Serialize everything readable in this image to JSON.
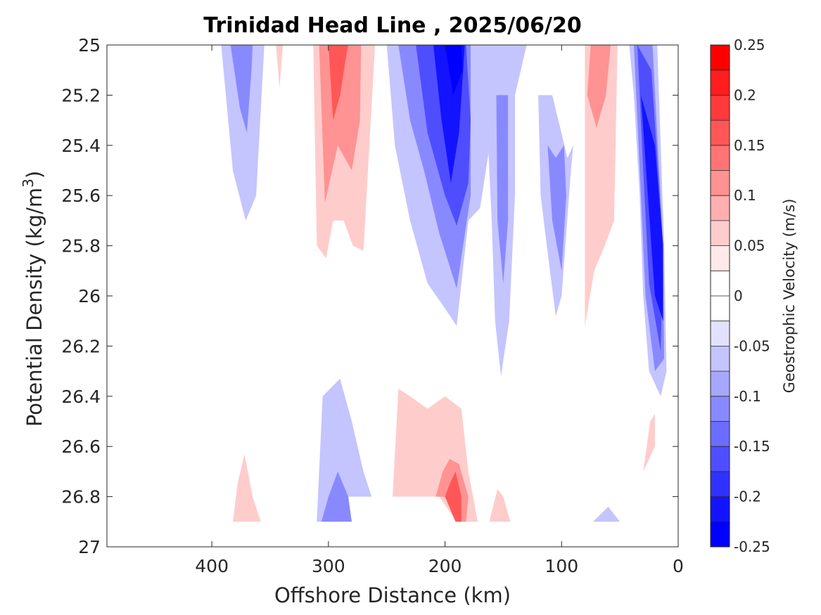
{
  "chart_data": {
    "type": "contour",
    "title": "Trinidad Head Line , 2025/06/20",
    "xlabel": "Offshore Distance (km)",
    "ylabel_main": "Potential Density (kg/m",
    "ylabel_sup": "3",
    "ylabel_close": ")",
    "xlim": [
      490,
      0
    ],
    "ylim": [
      27,
      25
    ],
    "x_ticks": [
      400,
      300,
      200,
      100,
      0
    ],
    "x_tick_labels": [
      "400",
      "300",
      "200",
      "100",
      "0"
    ],
    "y_ticks": [
      25,
      25.2,
      25.4,
      25.6,
      25.8,
      26,
      26.2,
      26.4,
      26.6,
      26.8,
      27
    ],
    "y_tick_labels": [
      "25",
      "25.2",
      "25.4",
      "25.6",
      "25.8",
      "26",
      "26.2",
      "26.4",
      "26.6",
      "26.8",
      "27"
    ],
    "colorbar": {
      "label": "Geostrophic Velocity (m/s)",
      "range": [
        -0.25,
        0.25
      ],
      "tick_values": [
        0.25,
        0.2,
        0.15,
        0.1,
        0.05,
        0,
        -0.05,
        -0.1,
        -0.15,
        -0.2,
        -0.25
      ],
      "tick_labels": [
        "0.25",
        "0.2",
        "0.15",
        "0.1",
        "0.05",
        "0",
        "-0.05",
        "-0.1",
        "-0.15",
        "-0.2",
        "-0.25"
      ],
      "colors_top_to_bottom": [
        "#ff0000",
        "#ff1d1d",
        "#ff3a3a",
        "#ff5757",
        "#ff7474",
        "#ff9292",
        "#ffafaf",
        "#ffcccc",
        "#ffe9e9",
        "#ffffff",
        "#ffffff",
        "#e2e2ff",
        "#c4c4ff",
        "#a7a7ff",
        "#8989ff",
        "#6c6cff",
        "#4e4eff",
        "#3131ff",
        "#1313ff",
        "#0000ff"
      ]
    },
    "regions": [
      {
        "name": "neg-core-A",
        "level": -0.05,
        "pts": [
          [
            392,
            25
          ],
          [
            382,
            25.5
          ],
          [
            371,
            25.7
          ],
          [
            362,
            25.6
          ],
          [
            355,
            25
          ],
          [
            362,
            25
          ],
          [
            370,
            25
          ]
        ]
      },
      {
        "name": "neg-core-A2",
        "level": -0.1,
        "pts": [
          [
            384,
            25
          ],
          [
            376,
            25.25
          ],
          [
            370,
            25.35
          ],
          [
            366,
            25.1
          ],
          [
            365,
            25
          ]
        ]
      },
      {
        "name": "pos-sliver",
        "level": 0.05,
        "pts": [
          [
            345,
            25
          ],
          [
            342,
            25.17
          ],
          [
            339,
            25
          ]
        ]
      },
      {
        "name": "pos-core-B",
        "level": 0.05,
        "pts": [
          [
            313,
            25
          ],
          [
            310,
            25.8
          ],
          [
            302,
            25.85
          ],
          [
            296,
            25.7
          ],
          [
            287,
            25.7
          ],
          [
            279,
            25.8
          ],
          [
            270,
            25.82
          ],
          [
            260,
            25
          ],
          [
            285,
            25
          ]
        ]
      },
      {
        "name": "pos-core-B2",
        "level": 0.1,
        "pts": [
          [
            308,
            25
          ],
          [
            303,
            25.63
          ],
          [
            292,
            25.4
          ],
          [
            280,
            25.5
          ],
          [
            273,
            25.3
          ],
          [
            272,
            25
          ]
        ]
      },
      {
        "name": "pos-core-B3",
        "level": 0.15,
        "pts": [
          [
            300,
            25
          ],
          [
            296,
            25.3
          ],
          [
            290,
            25.2
          ],
          [
            285,
            25.05
          ],
          [
            283,
            25
          ]
        ]
      },
      {
        "name": "neg-core-C",
        "level": -0.05,
        "pts": [
          [
            250,
            25
          ],
          [
            243,
            25.4
          ],
          [
            230,
            25.7
          ],
          [
            215,
            25.95
          ],
          [
            200,
            26.05
          ],
          [
            190,
            26.12
          ],
          [
            180,
            25.7
          ],
          [
            170,
            25.65
          ],
          [
            160,
            25.35
          ],
          [
            150,
            25.2
          ],
          [
            140,
            25.2
          ],
          [
            130,
            25
          ],
          [
            190,
            25
          ]
        ]
      },
      {
        "name": "neg-core-C2",
        "level": -0.1,
        "pts": [
          [
            240,
            25
          ],
          [
            230,
            25.3
          ],
          [
            218,
            25.5
          ],
          [
            205,
            25.75
          ],
          [
            190,
            25.97
          ],
          [
            178,
            25.6
          ],
          [
            178,
            25
          ],
          [
            205,
            25
          ]
        ]
      },
      {
        "name": "neg-core-C3",
        "level": -0.15,
        "pts": [
          [
            225,
            25
          ],
          [
            215,
            25.35
          ],
          [
            200,
            25.6
          ],
          [
            190,
            25.72
          ],
          [
            180,
            25.55
          ],
          [
            178,
            25.3
          ],
          [
            182,
            25
          ]
        ]
      },
      {
        "name": "neg-core-C4",
        "level": -0.2,
        "pts": [
          [
            210,
            25
          ],
          [
            203,
            25.3
          ],
          [
            195,
            25.55
          ],
          [
            188,
            25.35
          ],
          [
            183,
            25
          ]
        ]
      },
      {
        "name": "neg-core-C5",
        "level": -0.25,
        "pts": [
          [
            200,
            25
          ],
          [
            193,
            25.2
          ],
          [
            185,
            25.1
          ],
          [
            186,
            25
          ]
        ]
      },
      {
        "name": "neg-band-D",
        "level": -0.05,
        "pts": [
          [
            165,
            25.2
          ],
          [
            160,
            25.7
          ],
          [
            157,
            26.1
          ],
          [
            152,
            26.32
          ],
          [
            145,
            26.1
          ],
          [
            140,
            25.6
          ],
          [
            140,
            25.2
          ]
        ]
      },
      {
        "name": "neg-band-D2",
        "level": -0.1,
        "pts": [
          [
            156,
            25.2
          ],
          [
            155,
            25.7
          ],
          [
            150,
            25.95
          ],
          [
            146,
            25.7
          ],
          [
            146,
            25.2
          ]
        ]
      },
      {
        "name": "neg-band-E",
        "level": -0.05,
        "pts": [
          [
            120,
            25.2
          ],
          [
            118,
            25.6
          ],
          [
            110,
            25.9
          ],
          [
            105,
            26.08
          ],
          [
            100,
            26.0
          ],
          [
            92,
            25.5
          ],
          [
            90,
            25.4
          ],
          [
            95,
            25.45
          ],
          [
            108,
            25.2
          ]
        ]
      },
      {
        "name": "neg-band-E2",
        "level": -0.1,
        "pts": [
          [
            112,
            25.4
          ],
          [
            108,
            25.7
          ],
          [
            100,
            25.9
          ],
          [
            96,
            25.6
          ],
          [
            98,
            25.4
          ],
          [
            105,
            25.45
          ]
        ]
      },
      {
        "name": "pos-band-F",
        "level": 0.05,
        "pts": [
          [
            80,
            25
          ],
          [
            80,
            26.12
          ],
          [
            72,
            25.9
          ],
          [
            63,
            25.8
          ],
          [
            55,
            25.7
          ],
          [
            52,
            25
          ]
        ]
      },
      {
        "name": "pos-band-F2",
        "level": 0.1,
        "pts": [
          [
            75,
            25
          ],
          [
            78,
            25.2
          ],
          [
            70,
            25.33
          ],
          [
            62,
            25.2
          ],
          [
            58,
            25
          ]
        ]
      },
      {
        "name": "neg-coastal-G",
        "level": -0.05,
        "pts": [
          [
            42,
            25
          ],
          [
            38,
            25.2
          ],
          [
            33,
            25.6
          ],
          [
            30,
            26
          ],
          [
            25,
            26.3
          ],
          [
            15,
            26.4
          ],
          [
            10,
            26.3
          ],
          [
            12,
            25.8
          ],
          [
            18,
            25
          ],
          [
            30,
            25
          ]
        ]
      },
      {
        "name": "neg-coastal-G2",
        "level": -0.1,
        "pts": [
          [
            38,
            25
          ],
          [
            34,
            25.4
          ],
          [
            28,
            26
          ],
          [
            20,
            26.3
          ],
          [
            12,
            26.25
          ],
          [
            13,
            25.8
          ],
          [
            22,
            25
          ]
        ]
      },
      {
        "name": "neg-coastal-G3",
        "level": -0.15,
        "pts": [
          [
            35,
            25
          ],
          [
            30,
            25.5
          ],
          [
            25,
            25.95
          ],
          [
            15,
            26.22
          ],
          [
            13,
            25.8
          ],
          [
            23,
            25.1
          ]
        ]
      },
      {
        "name": "neg-coastal-G4",
        "level": -0.2,
        "pts": [
          [
            32,
            25.2
          ],
          [
            26,
            25.6
          ],
          [
            20,
            26.0
          ],
          [
            13,
            26.1
          ],
          [
            13,
            25.8
          ],
          [
            20,
            25.4
          ]
        ]
      },
      {
        "name": "pos-low-H",
        "level": 0.05,
        "pts": [
          [
            382,
            26.9
          ],
          [
            378,
            26.75
          ],
          [
            372,
            26.63
          ],
          [
            365,
            26.8
          ],
          [
            358,
            26.9
          ]
        ]
      },
      {
        "name": "neg-low-I",
        "level": -0.05,
        "pts": [
          [
            310,
            26.9
          ],
          [
            305,
            26.4
          ],
          [
            290,
            26.33
          ],
          [
            280,
            26.5
          ],
          [
            270,
            26.7
          ],
          [
            263,
            26.8
          ],
          [
            290,
            26.8
          ],
          [
            290,
            26.9
          ]
        ]
      },
      {
        "name": "neg-low-I2",
        "level": -0.1,
        "pts": [
          [
            306,
            26.9
          ],
          [
            300,
            26.8
          ],
          [
            292,
            26.7
          ],
          [
            283,
            26.8
          ],
          [
            280,
            26.9
          ]
        ]
      },
      {
        "name": "pos-low-J",
        "level": 0.05,
        "pts": [
          [
            245,
            26.8
          ],
          [
            240,
            26.37
          ],
          [
            230,
            26.4
          ],
          [
            215,
            26.45
          ],
          [
            200,
            26.4
          ],
          [
            186,
            26.45
          ],
          [
            180,
            26.7
          ],
          [
            172,
            26.9
          ],
          [
            190,
            26.9
          ],
          [
            205,
            26.8
          ]
        ]
      },
      {
        "name": "pos-low-J2",
        "level": 0.1,
        "pts": [
          [
            208,
            26.8
          ],
          [
            202,
            26.7
          ],
          [
            196,
            26.65
          ],
          [
            188,
            26.67
          ],
          [
            180,
            26.8
          ],
          [
            182,
            26.9
          ],
          [
            190,
            26.9
          ],
          [
            200,
            26.8
          ]
        ]
      },
      {
        "name": "pos-low-J3",
        "level": 0.15,
        "pts": [
          [
            200,
            26.8
          ],
          [
            196,
            26.75
          ],
          [
            191,
            26.7
          ],
          [
            186,
            26.8
          ],
          [
            186,
            26.9
          ],
          [
            191,
            26.9
          ]
        ]
      },
      {
        "name": "pos-low-K",
        "level": 0.05,
        "pts": [
          [
            162,
            26.9
          ],
          [
            155,
            26.77
          ],
          [
            150,
            26.8
          ],
          [
            144,
            26.9
          ]
        ]
      },
      {
        "name": "neg-low-L",
        "level": -0.05,
        "pts": [
          [
            73,
            26.9
          ],
          [
            60,
            26.84
          ],
          [
            50,
            26.9
          ]
        ]
      },
      {
        "name": "pos-low-M",
        "level": 0.05,
        "pts": [
          [
            30,
            26.7
          ],
          [
            24,
            26.5
          ],
          [
            20,
            26.47
          ],
          [
            20,
            26.6
          ]
        ]
      }
    ]
  }
}
